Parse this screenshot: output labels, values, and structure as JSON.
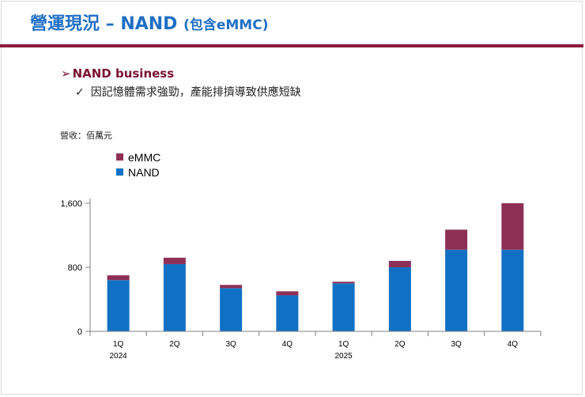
{
  "slide": {
    "title_main": "營運現況 – NAND ",
    "title_sub": "(包含eMMC)",
    "bullet_arrow": "➢",
    "bullet_heading": "NAND business",
    "sub_check": "✓",
    "sub_bullet": "因記憶體需求強勁，產能排擠導致供應短缺",
    "unit_label": "營收：佰萬元"
  },
  "colors": {
    "title": "#1f6fc5",
    "rule": "#8b1a3c",
    "emmc": "#8e2f55",
    "nand": "#1071c4"
  },
  "chart_data": {
    "type": "bar",
    "stacked": true,
    "categories": [
      "1Q",
      "2Q",
      "3Q",
      "4Q",
      "1Q",
      "2Q",
      "3Q",
      "4Q"
    ],
    "year_labels": [
      {
        "index": 0,
        "label": "2024"
      },
      {
        "index": 4,
        "label": "2025"
      }
    ],
    "series": [
      {
        "name": "NAND",
        "values": [
          640,
          840,
          540,
          450,
          600,
          800,
          1020,
          1020
        ]
      },
      {
        "name": "eMMC",
        "values": [
          60,
          80,
          40,
          50,
          20,
          80,
          250,
          580
        ]
      }
    ],
    "legend": [
      "eMMC",
      "NAND"
    ],
    "yticks": [
      0,
      800,
      1600
    ],
    "ytick_labels": [
      "0",
      "800",
      "1,600"
    ],
    "ylim": [
      0,
      1600
    ],
    "title": "",
    "xlabel": "",
    "ylabel": "營收：佰萬元",
    "grid": false
  }
}
